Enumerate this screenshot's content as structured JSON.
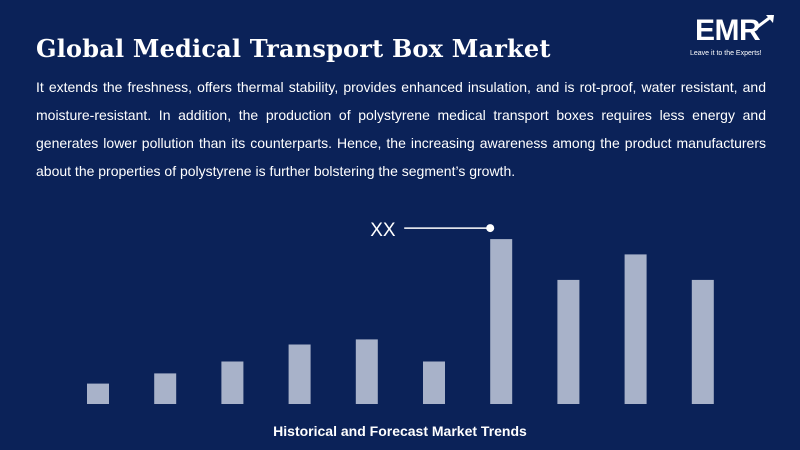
{
  "header": {
    "title": "Global Medical Transport Box Market"
  },
  "logo": {
    "text": "EMR",
    "tagline": "Leave it to the Experts!"
  },
  "description": "It extends the freshness, offers thermal stability, provides enhanced insulation, and is rot-proof, water resistant, and moisture-resistant. In addition, the production of polystyrene medical transport boxes requires less energy and generates lower pollution than its counterparts. Hence, the increasing awareness among the product manufacturers about the properties of polystyrene is further bolstering the segment’s growth.",
  "colors": {
    "background": "#0b2258",
    "bar": "#a8b2c9",
    "text": "#ffffff"
  },
  "chart_data": {
    "type": "bar",
    "title": "",
    "caption": "Historical and Forecast Market Trends",
    "categories": [
      "",
      "",
      "",
      "",
      "",
      "",
      "",
      "",
      "",
      ""
    ],
    "values": [
      12,
      18,
      25,
      35,
      38,
      25,
      97,
      73,
      88,
      73
    ],
    "ylim": [
      0,
      100
    ],
    "annotation": {
      "text": "XX",
      "bar_index": 6
    },
    "grid": false,
    "legend": "none"
  }
}
